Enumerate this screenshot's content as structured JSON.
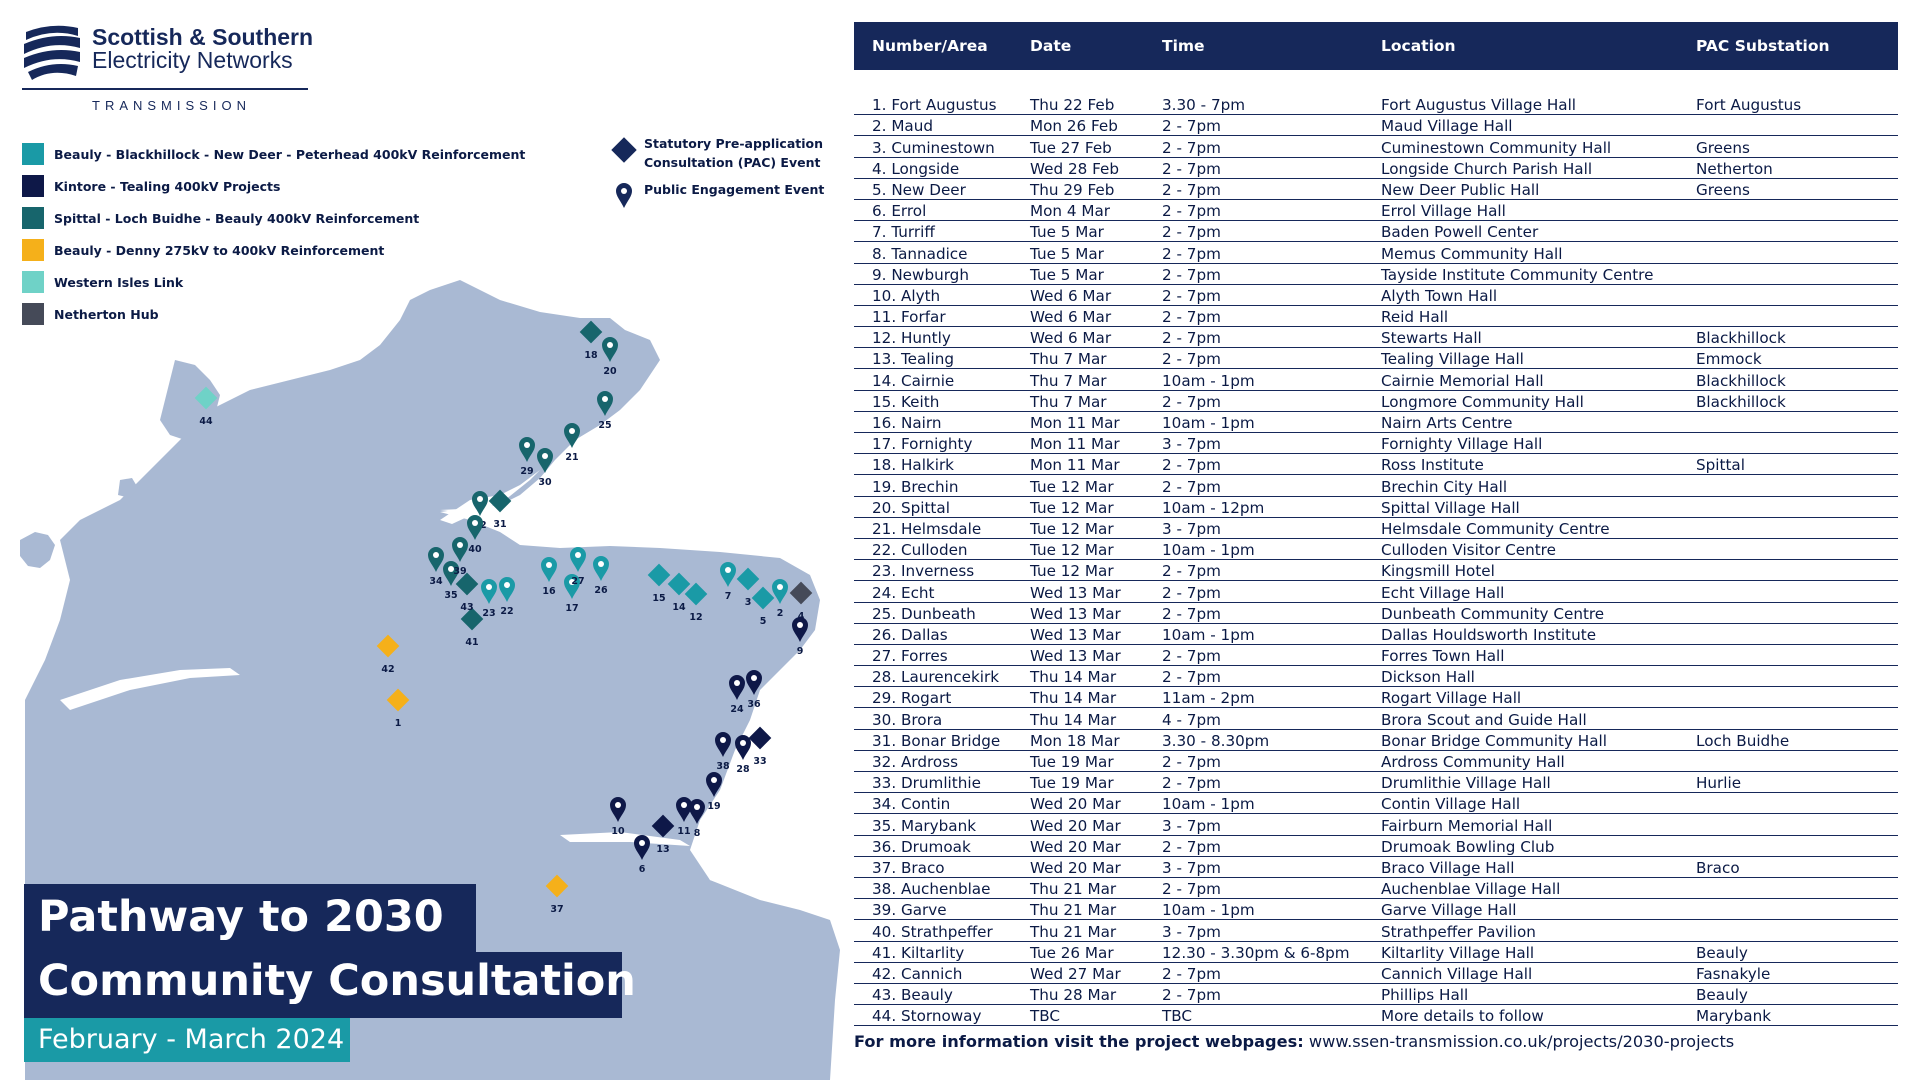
{
  "logo": {
    "line1": "Scottish & Southern",
    "line2": "Electricity Networks",
    "line3": "TRANSMISSION"
  },
  "legend": {
    "projects": [
      {
        "label": "Beauly - Blackhillock - New Deer - Peterhead 400kV Reinforcement",
        "color": "#1a9aa6"
      },
      {
        "label": "Kintore - Tealing 400kV Projects",
        "color": "#0e1848"
      },
      {
        "label": "Spittal - Loch  Buidhe - Beauly 400kV Reinforcement",
        "color": "#17656c"
      },
      {
        "label": "Beauly - Denny 275kV to 400kV Reinforcement",
        "color": "#f5b01a"
      },
      {
        "label": "Western Isles Link",
        "color": "#6fd2c7"
      },
      {
        "label": "Netherton Hub",
        "color": "#454a58"
      }
    ],
    "event_types": [
      {
        "icon": "diamond-icon",
        "label": "Statutory Pre-application Consultation (PAC) Event"
      },
      {
        "icon": "map-pin-icon",
        "label": "Public Engagement Event"
      }
    ]
  },
  "title": {
    "line1": "Pathway to 2030",
    "line2": "Community Consultation",
    "dates": "February - March 2024"
  },
  "map": {
    "markers": [
      {
        "id": "1",
        "project": 3,
        "type": "pac"
      },
      {
        "id": "2",
        "project": 0,
        "type": "pin"
      },
      {
        "id": "3",
        "project": 0,
        "type": "pac"
      },
      {
        "id": "4",
        "project": 5,
        "type": "pac"
      },
      {
        "id": "5",
        "project": 0,
        "type": "pac"
      },
      {
        "id": "6",
        "project": 1,
        "type": "pin"
      },
      {
        "id": "7",
        "project": 0,
        "type": "pin"
      },
      {
        "id": "8",
        "project": 1,
        "type": "pin"
      },
      {
        "id": "9",
        "project": 1,
        "type": "pin"
      },
      {
        "id": "10",
        "project": 1,
        "type": "pin"
      },
      {
        "id": "11",
        "project": 1,
        "type": "pin"
      },
      {
        "id": "12",
        "project": 0,
        "type": "pac"
      },
      {
        "id": "13",
        "project": 1,
        "type": "pac"
      },
      {
        "id": "14",
        "project": 0,
        "type": "pac"
      },
      {
        "id": "15",
        "project": 0,
        "type": "pac"
      },
      {
        "id": "16",
        "project": 0,
        "type": "pin"
      },
      {
        "id": "17",
        "project": 0,
        "type": "pin"
      },
      {
        "id": "18",
        "project": 2,
        "type": "pac"
      },
      {
        "id": "19",
        "project": 1,
        "type": "pin"
      },
      {
        "id": "20",
        "project": 2,
        "type": "pin"
      },
      {
        "id": "21",
        "project": 2,
        "type": "pin"
      },
      {
        "id": "22",
        "project": 0,
        "type": "pin"
      },
      {
        "id": "23",
        "project": 0,
        "type": "pin"
      },
      {
        "id": "24",
        "project": 1,
        "type": "pin"
      },
      {
        "id": "25",
        "project": 2,
        "type": "pin"
      },
      {
        "id": "26",
        "project": 0,
        "type": "pin"
      },
      {
        "id": "27",
        "project": 0,
        "type": "pin"
      },
      {
        "id": "28",
        "project": 1,
        "type": "pin"
      },
      {
        "id": "29",
        "project": 2,
        "type": "pin"
      },
      {
        "id": "30",
        "project": 2,
        "type": "pin"
      },
      {
        "id": "31",
        "project": 2,
        "type": "pac"
      },
      {
        "id": "32",
        "project": 2,
        "type": "pin"
      },
      {
        "id": "33",
        "project": 1,
        "type": "pac"
      },
      {
        "id": "34",
        "project": 2,
        "type": "pin"
      },
      {
        "id": "35",
        "project": 2,
        "type": "pin"
      },
      {
        "id": "36",
        "project": 1,
        "type": "pin"
      },
      {
        "id": "37",
        "project": 3,
        "type": "pac"
      },
      {
        "id": "38",
        "project": 1,
        "type": "pin"
      },
      {
        "id": "39",
        "project": 2,
        "type": "pin"
      },
      {
        "id": "40",
        "project": 2,
        "type": "pin"
      },
      {
        "id": "41",
        "project": 2,
        "type": "pac"
      },
      {
        "id": "42",
        "project": 3,
        "type": "pac"
      },
      {
        "id": "43",
        "project": 2,
        "type": "pac"
      },
      {
        "id": "44",
        "project": 4,
        "type": "pac"
      }
    ]
  },
  "table": {
    "headers": [
      "Number/Area",
      "Date",
      "Time",
      "Location",
      "PAC Substation"
    ],
    "rows": [
      [
        "1. Fort Augustus",
        "Thu 22 Feb",
        "3.30 - 7pm",
        "Fort Augustus Village Hall",
        "Fort Augustus"
      ],
      [
        "2. Maud",
        "Mon 26 Feb",
        "2 - 7pm",
        "Maud Village Hall",
        ""
      ],
      [
        "3. Cuminestown",
        "Tue 27 Feb",
        "2 - 7pm",
        "Cuminestown Community Hall",
        "Greens"
      ],
      [
        "4. Longside",
        "Wed 28 Feb",
        "2 - 7pm",
        "Longside Church Parish Hall",
        "Netherton"
      ],
      [
        "5. New Deer",
        "Thu 29 Feb",
        "2 - 7pm",
        "New Deer Public Hall",
        "Greens"
      ],
      [
        "6. Errol",
        "Mon 4 Mar",
        "2 - 7pm",
        "Errol Village Hall",
        ""
      ],
      [
        "7. Turriff",
        "Tue 5 Mar",
        "2 - 7pm",
        "Baden Powell Center",
        ""
      ],
      [
        "8. Tannadice",
        "Tue 5 Mar",
        "2 - 7pm",
        "Memus Community Hall",
        ""
      ],
      [
        "9. Newburgh",
        "Tue 5 Mar",
        "2 - 7pm",
        "Tayside Institute Community Centre",
        ""
      ],
      [
        "10. Alyth",
        "Wed 6 Mar",
        "2 - 7pm",
        "Alyth Town Hall",
        ""
      ],
      [
        "11. Forfar",
        "Wed 6 Mar",
        "2 - 7pm",
        "Reid Hall",
        ""
      ],
      [
        "12. Huntly",
        "Wed 6 Mar",
        "2 - 7pm",
        "Stewarts Hall",
        "Blackhillock"
      ],
      [
        "13. Tealing",
        "Thu 7 Mar",
        "2 - 7pm",
        "Tealing Village Hall",
        "Emmock"
      ],
      [
        "14. Cairnie",
        "Thu 7 Mar",
        "10am - 1pm",
        "Cairnie Memorial Hall",
        "Blackhillock"
      ],
      [
        "15. Keith",
        "Thu 7 Mar",
        "2 - 7pm",
        "Longmore Community Hall",
        "Blackhillock"
      ],
      [
        "16. Nairn",
        "Mon 11 Mar",
        "10am - 1pm",
        "Nairn Arts Centre",
        ""
      ],
      [
        "17. Fornighty",
        "Mon 11 Mar",
        "3 - 7pm",
        "Fornighty Village Hall",
        ""
      ],
      [
        "18. Halkirk",
        "Mon 11 Mar",
        "2 - 7pm",
        "Ross Institute",
        "Spittal"
      ],
      [
        "19. Brechin",
        "Tue 12 Mar",
        "2 - 7pm",
        "Brechin City Hall",
        ""
      ],
      [
        "20. Spittal",
        "Tue 12 Mar",
        "10am - 12pm",
        "Spittal Village Hall",
        ""
      ],
      [
        "21. Helmsdale",
        "Tue 12 Mar",
        "3 - 7pm",
        "Helmsdale Community Centre",
        ""
      ],
      [
        "22. Culloden",
        "Tue 12 Mar",
        "10am - 1pm",
        "Culloden Visitor Centre",
        ""
      ],
      [
        "23. Inverness",
        "Tue 12 Mar",
        "2 - 7pm",
        "Kingsmill Hotel",
        ""
      ],
      [
        "24. Echt",
        "Wed 13 Mar",
        "2 - 7pm",
        "Echt Village Hall",
        ""
      ],
      [
        "25. Dunbeath",
        "Wed 13 Mar",
        "2 - 7pm",
        "Dunbeath Community Centre",
        ""
      ],
      [
        "26. Dallas",
        "Wed 13 Mar",
        "10am - 1pm",
        "Dallas Houldsworth Institute",
        ""
      ],
      [
        "27. Forres",
        "Wed 13 Mar",
        "2 - 7pm",
        "Forres Town Hall",
        ""
      ],
      [
        "28. Laurencekirk",
        "Thu 14 Mar",
        "2 - 7pm",
        "Dickson Hall",
        ""
      ],
      [
        "29. Rogart",
        "Thu 14 Mar",
        "11am - 2pm",
        "Rogart Village Hall",
        ""
      ],
      [
        "30. Brora",
        "Thu 14 Mar",
        "4 - 7pm",
        "Brora Scout and Guide Hall",
        ""
      ],
      [
        "31. Bonar Bridge",
        "Mon 18 Mar",
        "3.30 - 8.30pm",
        "Bonar Bridge Community Hall",
        "Loch Buidhe"
      ],
      [
        "32. Ardross",
        "Tue 19 Mar",
        "2 - 7pm",
        "Ardross Community Hall",
        ""
      ],
      [
        "33. Drumlithie",
        "Tue 19 Mar",
        "2 - 7pm",
        "Drumlithie Village Hall",
        "Hurlie"
      ],
      [
        "34. Contin",
        "Wed 20 Mar",
        "10am - 1pm",
        "Contin Village Hall",
        ""
      ],
      [
        "35. Marybank",
        "Wed 20 Mar",
        "3 - 7pm",
        "Fairburn Memorial Hall",
        ""
      ],
      [
        "36. Drumoak",
        "Wed 20 Mar",
        "2 - 7pm",
        "Drumoak Bowling Club",
        ""
      ],
      [
        "37. Braco",
        "Wed 20 Mar",
        "3 - 7pm",
        "Braco Village Hall",
        "Braco"
      ],
      [
        "38. Auchenblae",
        "Thu 21 Mar",
        "2 - 7pm",
        "Auchenblae Village Hall",
        ""
      ],
      [
        "39. Garve",
        "Thu 21 Mar",
        "10am - 1pm",
        "Garve Village Hall",
        ""
      ],
      [
        "40. Strathpeffer",
        "Thu 21 Mar",
        "3 - 7pm",
        "Strathpeffer Pavilion",
        ""
      ],
      [
        "41. Kiltarlity",
        "Tue 26 Mar",
        "12.30 - 3.30pm & 6-8pm",
        "Kiltarlity Village Hall",
        "Beauly"
      ],
      [
        "42. Cannich",
        "Wed 27 Mar",
        "2 - 7pm",
        "Cannich Village Hall",
        "Fasnakyle"
      ],
      [
        "43. Beauly",
        "Thu 28 Mar",
        "2 - 7pm",
        "Phillips Hall",
        "Beauly"
      ],
      [
        "44. Stornoway",
        "TBC",
        "TBC",
        "More details to follow",
        "Marybank"
      ]
    ]
  },
  "footer": {
    "label": "For more information visit the project webpages:",
    "url": "www.ssen-transmission.co.uk/projects/2030-projects"
  }
}
